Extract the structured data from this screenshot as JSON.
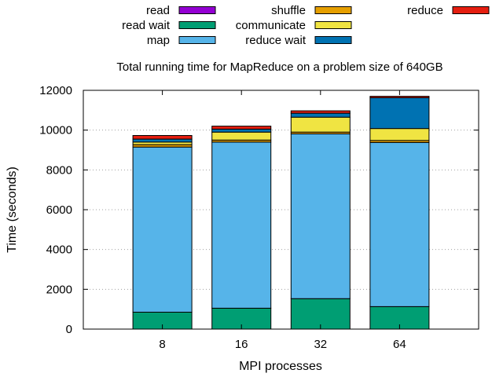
{
  "chart_data": {
    "type": "bar",
    "stacked": true,
    "title": "Total running time for MapReduce on a problem size of 640GB",
    "xlabel": "MPI processes",
    "ylabel": "Time (seconds)",
    "ylim": [
      0,
      12000
    ],
    "yticks": [
      0,
      2000,
      4000,
      6000,
      8000,
      10000,
      12000
    ],
    "grid": "horizontal dotted",
    "legend_position": "top",
    "categories": [
      "8",
      "16",
      "32",
      "64"
    ],
    "series": [
      {
        "name": "read",
        "color": "#9400d3",
        "values": [
          0,
          0,
          0,
          0
        ]
      },
      {
        "name": "read wait",
        "color": "#009e73",
        "values": [
          850,
          1050,
          1530,
          1130
        ]
      },
      {
        "name": "map",
        "color": "#56b4e9",
        "values": [
          8300,
          8350,
          8280,
          8250
        ]
      },
      {
        "name": "shuffle",
        "color": "#e69f00",
        "values": [
          120,
          100,
          90,
          100
        ]
      },
      {
        "name": "communicate",
        "color": "#f0e442",
        "values": [
          130,
          400,
          750,
          600
        ]
      },
      {
        "name": "reduce wait",
        "color": "#0072b2",
        "values": [
          150,
          150,
          200,
          1550
        ]
      },
      {
        "name": "reduce",
        "color": "#e51e10",
        "values": [
          180,
          150,
          120,
          70
        ]
      }
    ]
  }
}
